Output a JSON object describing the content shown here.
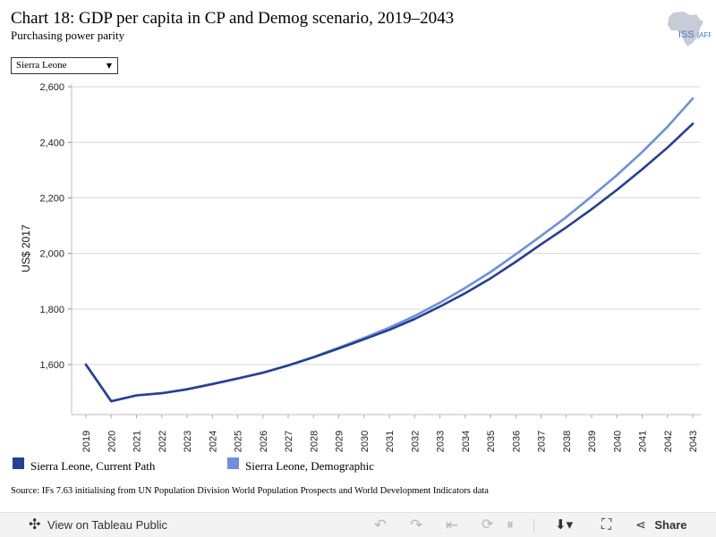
{
  "header": {
    "title": "Chart 18: GDP per capita in CP and Demog scenario, 2019–2043",
    "subtitle": "Purchasing power parity",
    "logo_text": "ISS|AFRICA"
  },
  "filter": {
    "selected": "Sierra Leone"
  },
  "chart_data": {
    "type": "line",
    "title": "Chart 18: GDP per capita in CP and Demog scenario, 2019–2043",
    "subtitle": "Purchasing power parity",
    "xlabel": "",
    "ylabel": "US$ 2017",
    "x": [
      "2019",
      "2020",
      "2021",
      "2022",
      "2023",
      "2024",
      "2025",
      "2026",
      "2027",
      "2028",
      "2029",
      "2030",
      "2031",
      "2032",
      "2033",
      "2034",
      "2035",
      "2036",
      "2037",
      "2038",
      "2039",
      "2040",
      "2041",
      "2042",
      "2043"
    ],
    "ylim": [
      1420,
      2610
    ],
    "yticks": [
      1600,
      1800,
      2000,
      2200,
      2400,
      2600
    ],
    "ytick_labels": [
      "1,600",
      "1,800",
      "2,000",
      "2,200",
      "2,400",
      "2,600"
    ],
    "grid": "horizontal",
    "legend_position": "bottom",
    "series": [
      {
        "name": "Sierra Leone, Current Path",
        "color": "#253f94",
        "values": [
          1600,
          1468,
          1489,
          1497,
          1511,
          1530,
          1550,
          1571,
          1597,
          1626,
          1658,
          1691,
          1725,
          1764,
          1809,
          1857,
          1910,
          1970,
          2033,
          2094,
          2159,
          2229,
          2303,
          2381,
          2467
        ]
      },
      {
        "name": "Sierra Leone, Demographic",
        "color": "#6f8fdd",
        "values": [
          1600,
          1468,
          1489,
          1497,
          1511,
          1530,
          1550,
          1571,
          1597,
          1627,
          1661,
          1696,
          1733,
          1775,
          1823,
          1876,
          1933,
          1997,
          2063,
          2131,
          2205,
          2282,
          2365,
          2456,
          2558
        ]
      }
    ]
  },
  "source": "Source: IFs 7.63 initialising from UN Population Division World Population Prospects and World Development Indicators data",
  "toolbar": {
    "view_label": "View on Tableau Public",
    "share_label": "Share"
  }
}
